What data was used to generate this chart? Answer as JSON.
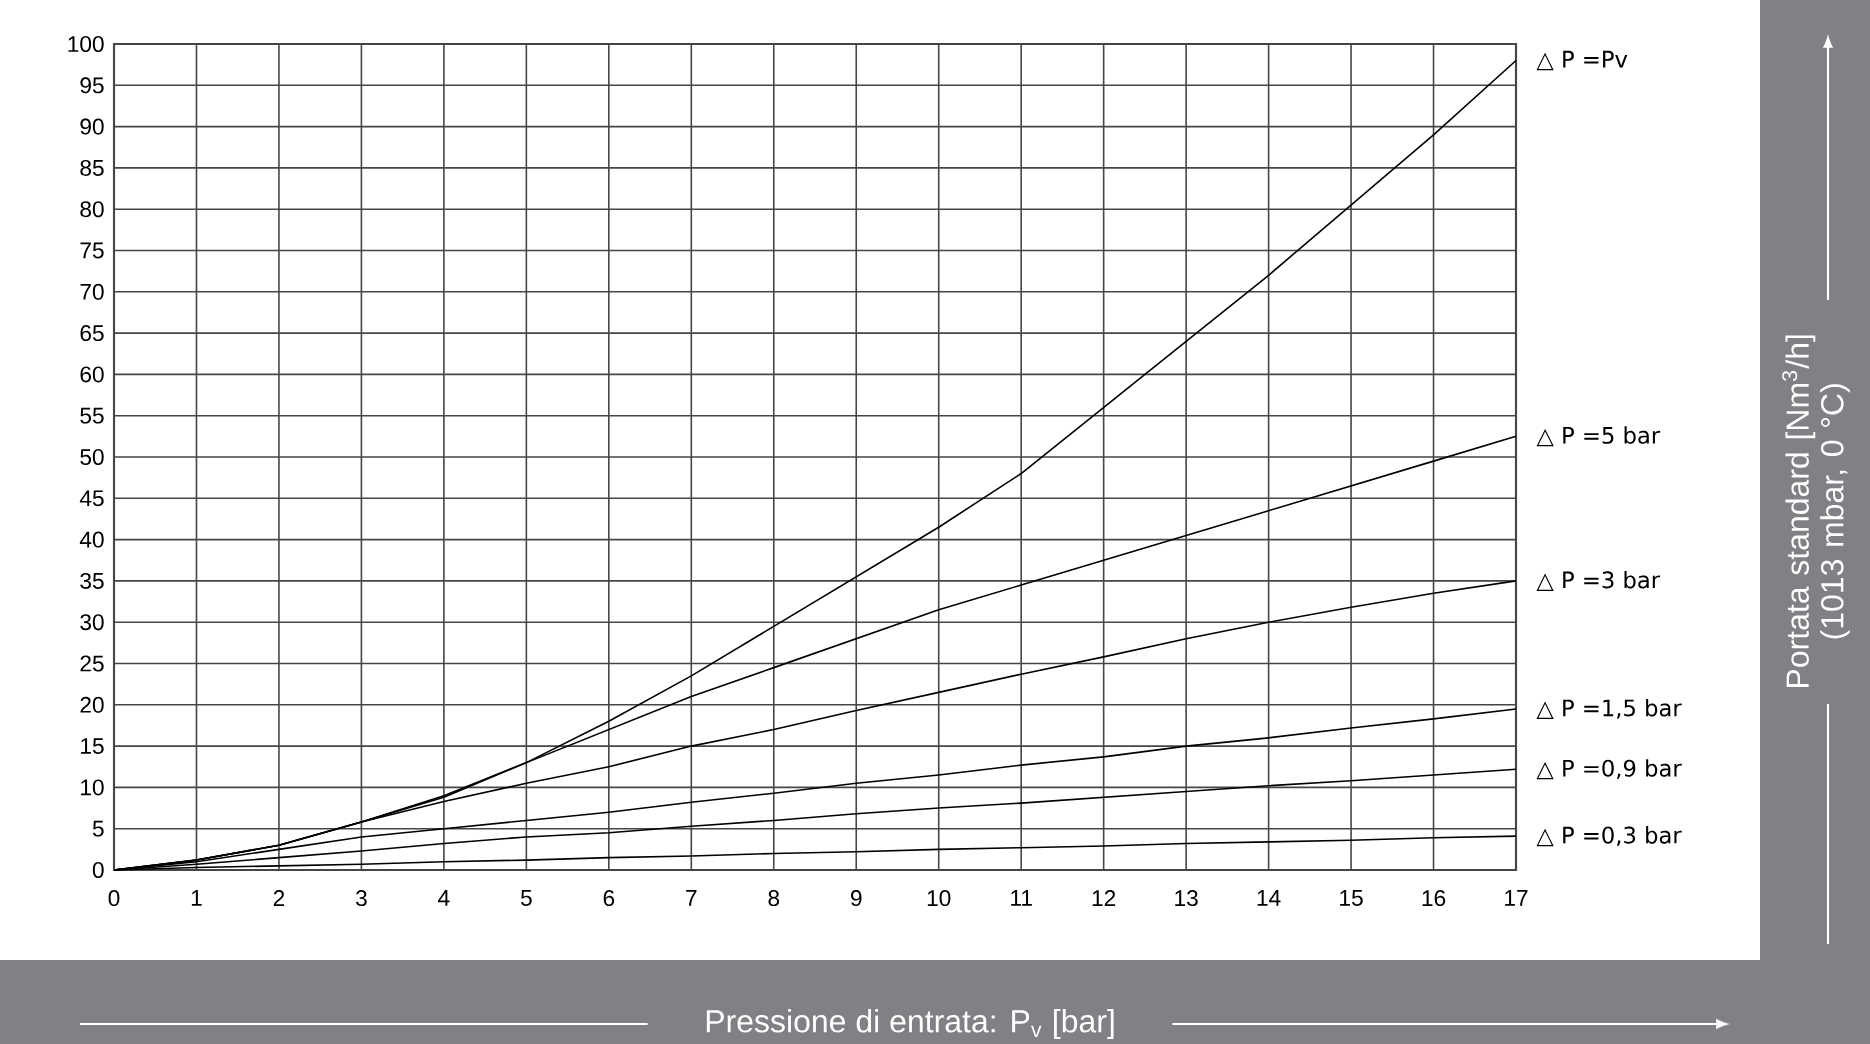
{
  "chart_data": {
    "type": "line",
    "xlabel": "Pressione di entrata: P$_{v}$ [bar]",
    "annotations": [
      "Portata standard [Nm$^{3}$/h] (1013 mbar, 0 °C)"
    ],
    "x": [
      0,
      1,
      2,
      3,
      4,
      5,
      6,
      7,
      8,
      9,
      10,
      11,
      12,
      13,
      14,
      15,
      16,
      17
    ],
    "xlim": [
      0,
      17
    ],
    "xticks": [
      0,
      1,
      2,
      3,
      4,
      5,
      6,
      7,
      8,
      9,
      10,
      11,
      12,
      13,
      14,
      15,
      16,
      17
    ],
    "ylim": [
      0,
      100
    ],
    "yticks": [
      0,
      5,
      10,
      15,
      20,
      25,
      30,
      35,
      40,
      45,
      50,
      55,
      60,
      65,
      70,
      75,
      80,
      85,
      90,
      95,
      100
    ],
    "grid": true,
    "legend": false,
    "marker": "none",
    "line_style": "solid",
    "series": [
      {
        "name": "△ P =Pv",
        "color": "#000000",
        "values": [
          0,
          1.2,
          3,
          5.8,
          9,
          13,
          18,
          23.5,
          29.5,
          35.5,
          41.5,
          48,
          56,
          64,
          72,
          80.5,
          89,
          98
        ]
      },
      {
        "name": "△ P =5 bar",
        "color": "#000000",
        "values": [
          0,
          1.2,
          3,
          5.8,
          8.8,
          13,
          17,
          21,
          24.5,
          28,
          31.5,
          34.5,
          37.5,
          40.5,
          43.5,
          46.5,
          49.5,
          52.5
        ]
      },
      {
        "name": "△ P =3 bar",
        "color": "#000000",
        "values": [
          0,
          1.2,
          3,
          5.8,
          8.3,
          10.5,
          12.5,
          15,
          17,
          19.3,
          21.5,
          23.7,
          25.8,
          28,
          30,
          31.8,
          33.5,
          35
        ]
      },
      {
        "name": "△ P =1,5 bar",
        "color": "#000000",
        "values": [
          0,
          1,
          2.5,
          4,
          5,
          6,
          7,
          8.2,
          9.3,
          10.5,
          11.5,
          12.7,
          13.7,
          15,
          16,
          17.2,
          18.3,
          19.5
        ]
      },
      {
        "name": "△ P =0,9 bar",
        "color": "#000000",
        "values": [
          0,
          0.7,
          1.5,
          2.3,
          3.2,
          4,
          4.5,
          5.3,
          6,
          6.8,
          7.5,
          8.1,
          8.8,
          9.5,
          10.2,
          10.8,
          11.5,
          12.2
        ]
      },
      {
        "name": "△ P =0,3 bar",
        "color": "#000000",
        "values": [
          0,
          0.3,
          0.5,
          0.7,
          1,
          1.2,
          1.5,
          1.7,
          2,
          2.2,
          2.5,
          2.7,
          2.9,
          3.2,
          3.4,
          3.6,
          3.9,
          4.1
        ]
      }
    ]
  }
}
